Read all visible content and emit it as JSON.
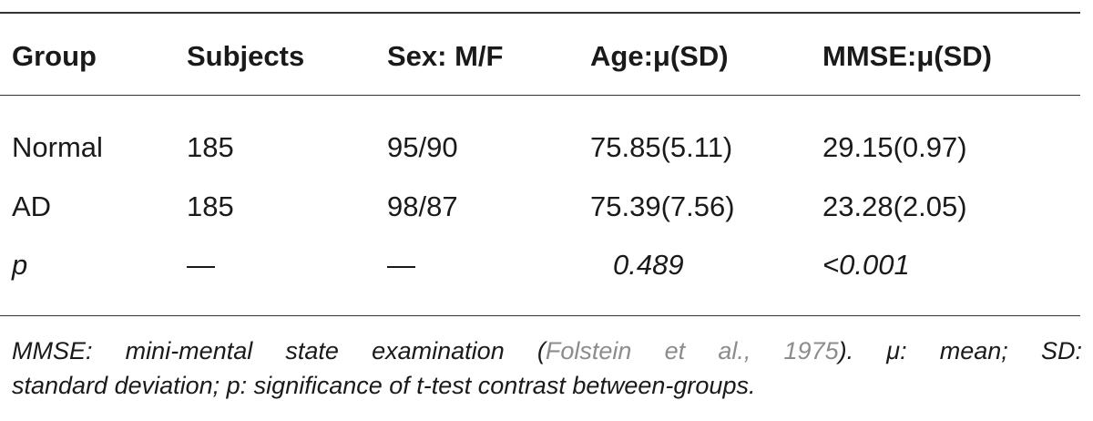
{
  "table": {
    "headers": [
      "Group",
      "Subjects",
      "Sex: M/F",
      "Age:μ(SD)",
      "MMSE:μ(SD)"
    ],
    "rows": [
      [
        "Normal",
        "185",
        "95/90",
        "75.85(5.11)",
        "29.15(0.97)"
      ],
      [
        "AD",
        "185",
        "98/87",
        "75.39(7.56)",
        "23.28(2.05)"
      ],
      [
        "p",
        "—",
        "—",
        "0.489",
        "<0.001"
      ]
    ]
  },
  "caption": {
    "line1_pre": "MMSE: mini-mental state examination (",
    "citation": "Folstein et al., 1975",
    "line1_post": "). μ: mean; SD:",
    "line2": "standard deviation; p: significance of t-test contrast between-groups."
  }
}
